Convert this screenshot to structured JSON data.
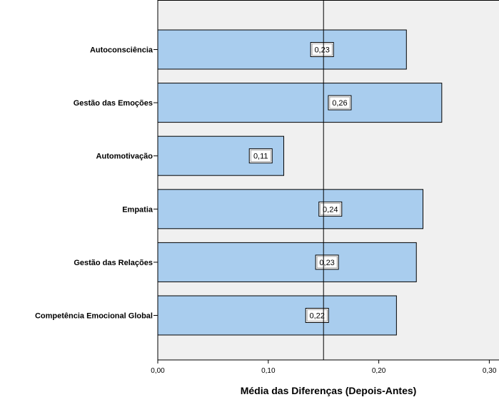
{
  "chart_data": {
    "type": "bar",
    "orientation": "horizontal",
    "categories": [
      "Autoconsciência",
      "Gestão das Emoções",
      "Automotivação",
      "Empatia",
      "Gestão das Relações",
      "Competência Emocional Global"
    ],
    "values": [
      0.225,
      0.257,
      0.114,
      0.24,
      0.234,
      0.216
    ],
    "data_labels": [
      "0,23",
      "0,26",
      "0,11",
      "0,24",
      "0,23",
      "0,22"
    ],
    "xlabel": "Média das Diferenças (Depois-Antes)",
    "xlim": [
      0,
      0.3
    ],
    "x_ticks": [
      0,
      0.1,
      0.2,
      0.3
    ],
    "x_tick_labels": [
      "0,00",
      "0,10",
      "0,20",
      "0,30"
    ],
    "reference_line": 0.15,
    "grid": false,
    "colors": {
      "bar_fill": "#a9cdee",
      "bar_stroke": "#000000",
      "plot_background": "#f0f0f0",
      "reference_line": "#000000"
    }
  }
}
